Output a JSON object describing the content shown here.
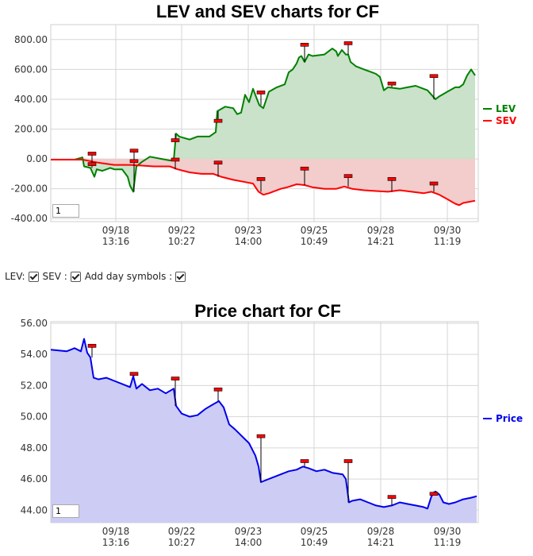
{
  "chart_data": [
    {
      "type": "area",
      "title": "LEV and SEV charts for CF",
      "ylim": [
        -420,
        900
      ],
      "y_ticks": [
        "800.00",
        "600.00",
        "400.00",
        "200.00",
        "0.00",
        "-200.00",
        "-400.00"
      ],
      "y_tick_values": [
        800,
        600,
        400,
        200,
        0,
        -200,
        -400
      ],
      "x_ticks": [
        {
          "date": "09/18",
          "time": "13:16"
        },
        {
          "date": "09/22",
          "time": "10:27"
        },
        {
          "date": "09/23",
          "time": "14:00"
        },
        {
          "date": "09/25",
          "time": "10:49"
        },
        {
          "date": "09/28",
          "time": "14:21"
        },
        {
          "date": "09/30",
          "time": "11:19"
        }
      ],
      "grid": true,
      "legend": "right",
      "series": [
        {
          "name": "LEV",
          "color": "#008000",
          "fill": "#c9e2c9",
          "points": [
            [
              0,
              -5
            ],
            [
              30,
              -5
            ],
            [
              40,
              10
            ],
            [
              42,
              -50
            ],
            [
              50,
              -60
            ],
            [
              55,
              -120
            ],
            [
              58,
              -70
            ],
            [
              65,
              -80
            ],
            [
              75,
              -60
            ],
            [
              80,
              -70
            ],
            [
              90,
              -70
            ],
            [
              97,
              -120
            ],
            [
              100,
              -180
            ],
            [
              104,
              -220
            ],
            [
              108,
              -50
            ],
            [
              115,
              -20
            ],
            [
              125,
              15
            ],
            [
              140,
              0
            ],
            [
              150,
              -10
            ],
            [
              155,
              -10
            ],
            [
              158,
              170
            ],
            [
              162,
              150
            ],
            [
              175,
              130
            ],
            [
              185,
              150
            ],
            [
              200,
              150
            ],
            [
              208,
              180
            ],
            [
              210,
              320
            ],
            [
              220,
              350
            ],
            [
              230,
              340
            ],
            [
              235,
              300
            ],
            [
              240,
              310
            ],
            [
              245,
              430
            ],
            [
              250,
              380
            ],
            [
              255,
              470
            ],
            [
              260,
              400
            ],
            [
              263,
              360
            ],
            [
              268,
              340
            ],
            [
              275,
              450
            ],
            [
              285,
              480
            ],
            [
              295,
              500
            ],
            [
              300,
              580
            ],
            [
              305,
              600
            ],
            [
              310,
              640
            ],
            [
              313,
              680
            ],
            [
              316,
              690
            ],
            [
              320,
              650
            ],
            [
              325,
              700
            ],
            [
              330,
              690
            ],
            [
              345,
              700
            ],
            [
              355,
              740
            ],
            [
              360,
              720
            ],
            [
              362,
              690
            ],
            [
              367,
              730
            ],
            [
              372,
              700
            ],
            [
              375,
              700
            ],
            [
              378,
              650
            ],
            [
              385,
              620
            ],
            [
              395,
              600
            ],
            [
              405,
              580
            ],
            [
              410,
              570
            ],
            [
              415,
              550
            ],
            [
              420,
              460
            ],
            [
              425,
              480
            ],
            [
              440,
              470
            ],
            [
              450,
              480
            ],
            [
              460,
              490
            ],
            [
              470,
              470
            ],
            [
              475,
              460
            ],
            [
              480,
              430
            ],
            [
              485,
              400
            ],
            [
              490,
              420
            ],
            [
              500,
              450
            ],
            [
              510,
              480
            ],
            [
              515,
              480
            ],
            [
              520,
              500
            ],
            [
              525,
              560
            ],
            [
              530,
              600
            ],
            [
              535,
              560
            ]
          ]
        },
        {
          "name": "SEV",
          "color": "#ff0000",
          "fill": "#f3cccc",
          "points": [
            [
              0,
              -5
            ],
            [
              40,
              -5
            ],
            [
              60,
              -25
            ],
            [
              80,
              -40
            ],
            [
              100,
              -40
            ],
            [
              115,
              -45
            ],
            [
              130,
              -50
            ],
            [
              150,
              -50
            ],
            [
              160,
              -70
            ],
            [
              175,
              -90
            ],
            [
              190,
              -100
            ],
            [
              205,
              -100
            ],
            [
              215,
              -120
            ],
            [
              230,
              -140
            ],
            [
              245,
              -155
            ],
            [
              255,
              -165
            ],
            [
              262,
              -220
            ],
            [
              268,
              -240
            ],
            [
              275,
              -230
            ],
            [
              290,
              -200
            ],
            [
              298,
              -190
            ],
            [
              310,
              -170
            ],
            [
              320,
              -175
            ],
            [
              330,
              -190
            ],
            [
              345,
              -200
            ],
            [
              360,
              -200
            ],
            [
              370,
              -185
            ],
            [
              380,
              -200
            ],
            [
              395,
              -210
            ],
            [
              410,
              -215
            ],
            [
              425,
              -220
            ],
            [
              440,
              -210
            ],
            [
              455,
              -220
            ],
            [
              470,
              -230
            ],
            [
              480,
              -220
            ],
            [
              490,
              -240
            ],
            [
              500,
              -270
            ],
            [
              510,
              -300
            ],
            [
              515,
              -310
            ],
            [
              520,
              -295
            ],
            [
              535,
              -280
            ]
          ]
        }
      ],
      "day_markers": [
        {
          "series": "LEV",
          "x": 52,
          "y": 30
        },
        {
          "series": "LEV",
          "x": 105,
          "y": 50
        },
        {
          "series": "LEV",
          "x": 157,
          "y": 120
        },
        {
          "series": "LEV",
          "x": 211,
          "y": 250
        },
        {
          "series": "LEV",
          "x": 265,
          "y": 440
        },
        {
          "series": "LEV",
          "x": 320,
          "y": 760
        },
        {
          "series": "LEV",
          "x": 375,
          "y": 770
        },
        {
          "series": "LEV",
          "x": 430,
          "y": 500
        },
        {
          "series": "LEV",
          "x": 483,
          "y": 550
        },
        {
          "series": "SEV",
          "x": 52,
          "y": -40
        },
        {
          "series": "SEV",
          "x": 105,
          "y": -20
        },
        {
          "series": "SEV",
          "x": 157,
          "y": -10
        },
        {
          "series": "SEV",
          "x": 211,
          "y": -30
        },
        {
          "series": "SEV",
          "x": 265,
          "y": -140
        },
        {
          "series": "SEV",
          "x": 320,
          "y": -70
        },
        {
          "series": "SEV",
          "x": 375,
          "y": -120
        },
        {
          "series": "SEV",
          "x": 430,
          "y": -140
        },
        {
          "series": "SEV",
          "x": 483,
          "y": -170
        }
      ],
      "zoom_value": "1"
    },
    {
      "type": "area",
      "title": "Price chart for CF",
      "ylim": [
        43.2,
        56.1
      ],
      "y_ticks": [
        "56.00",
        "54.00",
        "52.00",
        "50.00",
        "48.00",
        "46.00",
        "44.00"
      ],
      "y_tick_values": [
        56,
        54,
        52,
        50,
        48,
        46,
        44
      ],
      "x_ticks": [
        {
          "date": "09/18",
          "time": "13:16"
        },
        {
          "date": "09/22",
          "time": "10:27"
        },
        {
          "date": "09/23",
          "time": "14:00"
        },
        {
          "date": "09/25",
          "time": "10:49"
        },
        {
          "date": "09/28",
          "time": "14:21"
        },
        {
          "date": "09/30",
          "time": "11:19"
        }
      ],
      "grid": true,
      "legend": "right",
      "series": [
        {
          "name": "Price",
          "color": "#0000ee",
          "fill": "#ccccf5",
          "points": [
            [
              0,
              54.3
            ],
            [
              20,
              54.2
            ],
            [
              30,
              54.4
            ],
            [
              38,
              54.2
            ],
            [
              42,
              55.0
            ],
            [
              46,
              54.1
            ],
            [
              50,
              53.8
            ],
            [
              54,
              52.5
            ],
            [
              60,
              52.4
            ],
            [
              70,
              52.5
            ],
            [
              80,
              52.3
            ],
            [
              90,
              52.1
            ],
            [
              100,
              51.9
            ],
            [
              104,
              52.6
            ],
            [
              108,
              51.8
            ],
            [
              115,
              52.1
            ],
            [
              125,
              51.7
            ],
            [
              135,
              51.8
            ],
            [
              145,
              51.5
            ],
            [
              155,
              51.8
            ],
            [
              158,
              50.7
            ],
            [
              165,
              50.2
            ],
            [
              175,
              50.0
            ],
            [
              185,
              50.1
            ],
            [
              195,
              50.5
            ],
            [
              205,
              50.8
            ],
            [
              212,
              51.0
            ],
            [
              218,
              50.6
            ],
            [
              225,
              49.5
            ],
            [
              232,
              49.2
            ],
            [
              240,
              48.8
            ],
            [
              250,
              48.3
            ],
            [
              258,
              47.5
            ],
            [
              262,
              46.8
            ],
            [
              265,
              45.8
            ],
            [
              270,
              45.9
            ],
            [
              280,
              46.1
            ],
            [
              290,
              46.3
            ],
            [
              300,
              46.5
            ],
            [
              310,
              46.6
            ],
            [
              318,
              46.8
            ],
            [
              325,
              46.7
            ],
            [
              335,
              46.5
            ],
            [
              345,
              46.6
            ],
            [
              355,
              46.4
            ],
            [
              368,
              46.3
            ],
            [
              372,
              46.0
            ],
            [
              376,
              44.5
            ],
            [
              380,
              44.6
            ],
            [
              390,
              44.7
            ],
            [
              400,
              44.5
            ],
            [
              410,
              44.3
            ],
            [
              420,
              44.2
            ],
            [
              430,
              44.3
            ],
            [
              440,
              44.5
            ],
            [
              450,
              44.4
            ],
            [
              460,
              44.3
            ],
            [
              470,
              44.2
            ],
            [
              475,
              44.1
            ],
            [
              480,
              44.9
            ],
            [
              485,
              45.2
            ],
            [
              490,
              45.0
            ],
            [
              495,
              44.5
            ],
            [
              502,
              44.4
            ],
            [
              510,
              44.5
            ],
            [
              520,
              44.7
            ],
            [
              530,
              44.8
            ],
            [
              537,
              44.9
            ]
          ]
        }
      ],
      "day_markers": [
        {
          "series": "Price",
          "x": 52,
          "y": 54.5
        },
        {
          "series": "Price",
          "x": 105,
          "y": 52.7
        },
        {
          "series": "Price",
          "x": 157,
          "y": 52.4
        },
        {
          "series": "Price",
          "x": 211,
          "y": 51.7
        },
        {
          "series": "Price",
          "x": 265,
          "y": 48.7
        },
        {
          "series": "Price",
          "x": 320,
          "y": 47.1
        },
        {
          "series": "Price",
          "x": 375,
          "y": 47.1
        },
        {
          "series": "Price",
          "x": 430,
          "y": 44.8
        },
        {
          "series": "Price",
          "x": 483,
          "y": 45.0
        }
      ],
      "zoom_value": "1"
    }
  ],
  "controls": {
    "lev_label": "LEV:",
    "sev_label": "SEV :",
    "day_symbols_label": "Add day symbols :"
  }
}
